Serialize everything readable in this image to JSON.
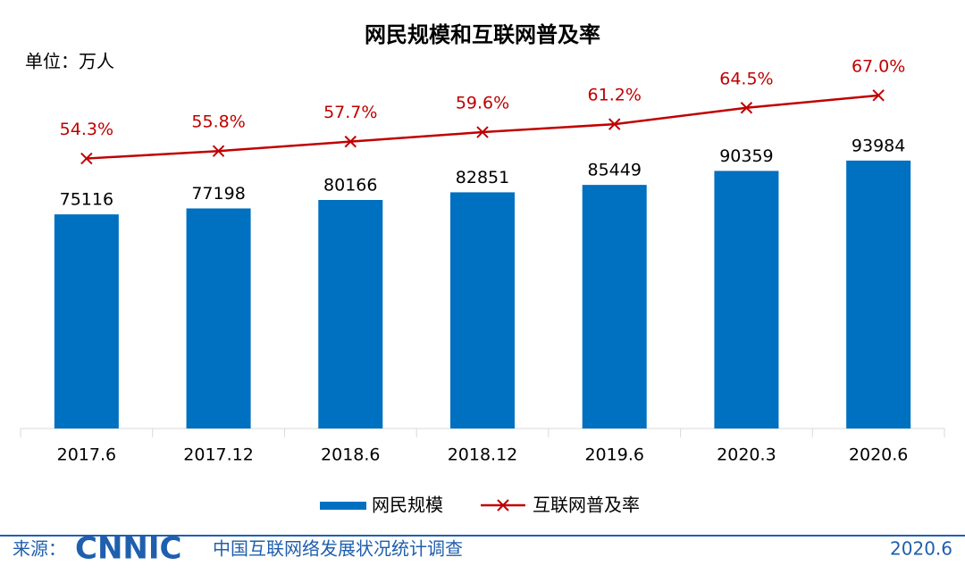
{
  "chart_data": {
    "type": "bar_line",
    "title": "网民规模和互联网普及率",
    "ylabel": "单位：万人",
    "categories": [
      "2017.6",
      "2017.12",
      "2018.6",
      "2018.12",
      "2019.6",
      "2020.3",
      "2020.6"
    ],
    "series": [
      {
        "name": "网民规模",
        "type": "bar",
        "color": "#0070c0",
        "values": [
          75116,
          77198,
          80166,
          82851,
          85449,
          90359,
          93984
        ]
      },
      {
        "name": "互联网普及率",
        "type": "line",
        "axis": "y2",
        "color": "#c00000",
        "values": [
          54.3,
          55.8,
          57.7,
          59.6,
          61.2,
          64.5,
          67.0
        ],
        "value_labels": [
          "54.3%",
          "55.8%",
          "57.7%",
          "59.6%",
          "61.2%",
          "64.5%",
          "67.0%"
        ]
      }
    ],
    "ylim": [
      0,
      150000
    ],
    "y2lim": [
      0,
      86
    ],
    "legend": "bottom"
  },
  "footer": {
    "source": "来源：",
    "logo": "CNNIC",
    "survey": "中国互联网络发展状况统计调查",
    "date": "2020.6"
  }
}
